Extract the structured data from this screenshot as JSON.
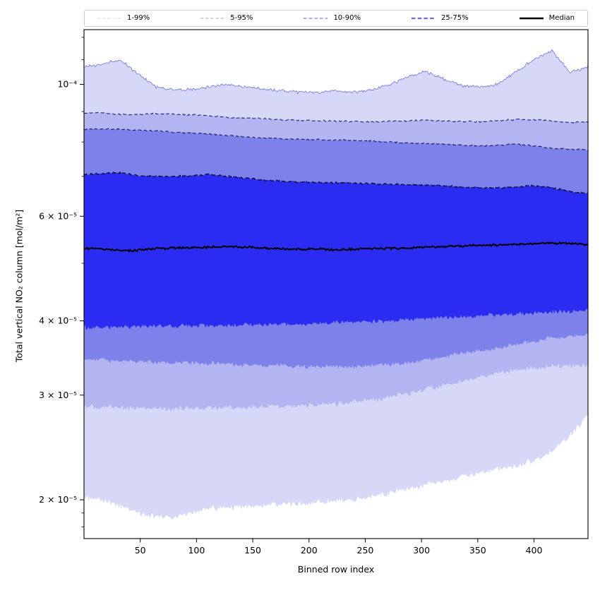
{
  "figure": {
    "background": "#ffffff"
  },
  "legend": {
    "entries": [
      {
        "label": "1-99%",
        "color": "rgba(60,60,230,0.22)",
        "width": 1.0,
        "dash": "4,3.2"
      },
      {
        "label": "5-95%",
        "color": "rgba(60,60,230,0.38)",
        "width": 1.2,
        "dash": "4,3.2"
      },
      {
        "label": "10-90%",
        "color": "rgba(55,55,235,0.55)",
        "width": 1.6,
        "dash": "4.5,3.2"
      },
      {
        "label": "25-75%",
        "color": "rgba(55,55,240,0.75)",
        "width": 2.3,
        "dash": "5.5,3.2"
      },
      {
        "label": "Median",
        "color": "#000000",
        "width": 2.6,
        "dash": null
      }
    ]
  },
  "chart_data": {
    "type": "area",
    "title": "",
    "xlabel": "Binned row index",
    "ylabel": "Total vertical NO₂ column [mol/m²]",
    "grid": false,
    "legend_position": "top",
    "x_axis": {
      "range": [
        0,
        448
      ],
      "ticks": [
        {
          "value": 50,
          "label": "50"
        },
        {
          "value": 100,
          "label": "100"
        },
        {
          "value": 150,
          "label": "150"
        },
        {
          "value": 200,
          "label": "200"
        },
        {
          "value": 250,
          "label": "250"
        },
        {
          "value": 300,
          "label": "300"
        },
        {
          "value": 350,
          "label": "350"
        },
        {
          "value": 400,
          "label": "400"
        }
      ]
    },
    "y_axis": {
      "scale": "log",
      "range": [
        1.72e-05,
        0.0001235
      ],
      "major_ticks": [
        {
          "value": 0.0001,
          "label": "10⁻⁴"
        },
        {
          "value": 6e-05,
          "label": "6 × 10⁻⁵"
        },
        {
          "value": 4e-05,
          "label": "4 × 10⁻⁵"
        },
        {
          "value": 3e-05,
          "label": "3 × 10⁻⁵"
        },
        {
          "value": 2e-05,
          "label": "2 × 10⁻⁵"
        }
      ],
      "minor_ticks": [
        0.00012,
        0.00011,
        9e-05,
        8e-05,
        7e-05,
        5e-05,
        1.9e-05,
        1.8e-05
      ]
    },
    "x_control": [
      0,
      16,
      32,
      48,
      64,
      80,
      96,
      112,
      128,
      144,
      160,
      176,
      192,
      208,
      224,
      240,
      256,
      272,
      288,
      304,
      320,
      336,
      352,
      368,
      384,
      400,
      416,
      432,
      448
    ],
    "series": {
      "p99": {
        "seed": 1,
        "noise": 0.007,
        "line": {
          "color": "#7b80e0",
          "width": 0.9,
          "dash": null
        },
        "values": [
          0.000107,
          0.000108,
          0.00011,
          0.000104,
          9.9e-05,
          9.8e-05,
          9.8e-05,
          9.9e-05,
          0.0001,
          9.9e-05,
          9.8e-05,
          9.75e-05,
          9.7e-05,
          9.7e-05,
          9.75e-05,
          9.7e-05,
          9.8e-05,
          0.0001,
          0.000103,
          0.000105,
          0.000102,
          9.95e-05,
          9.9e-05,
          0.0001,
          0.000105,
          0.00011,
          0.000114,
          0.0001046,
          0.000107
        ]
      },
      "p95": {
        "seed": 2,
        "noise": 0.0035,
        "line": {
          "color": "#23237f",
          "width": 1.1,
          "dash": "5,3.4"
        },
        "values": [
          8.95e-05,
          8.95e-05,
          8.9e-05,
          8.9e-05,
          8.92e-05,
          8.9e-05,
          8.88e-05,
          8.85e-05,
          8.8e-05,
          8.78e-05,
          8.75e-05,
          8.72e-05,
          8.7e-05,
          8.68e-05,
          8.67e-05,
          8.66e-05,
          8.65e-05,
          8.67e-05,
          8.68e-05,
          8.7e-05,
          8.68e-05,
          8.66e-05,
          8.65e-05,
          8.68e-05,
          8.73e-05,
          8.72e-05,
          8.68e-05,
          8.62e-05,
          8.65e-05
        ]
      },
      "p90": {
        "seed": 3,
        "noise": 0.0035,
        "line": {
          "color": "#1b1b68",
          "width": 1.1,
          "dash": "5,3.4"
        },
        "values": [
          8.4e-05,
          8.42e-05,
          8.4e-05,
          8.38e-05,
          8.35e-05,
          8.3e-05,
          8.28e-05,
          8.25e-05,
          8.2e-05,
          8.15e-05,
          8.12e-05,
          8.1e-05,
          8.08e-05,
          8.07e-05,
          8.05e-05,
          8.05e-05,
          8.03e-05,
          8e-05,
          7.97e-05,
          7.95e-05,
          7.93e-05,
          7.9e-05,
          7.88e-05,
          7.9e-05,
          7.93e-05,
          7.88e-05,
          7.8e-05,
          7.78e-05,
          7.75e-05
        ]
      },
      "p75": {
        "seed": 4,
        "noise": 0.004,
        "line": {
          "color": "#0c0c38",
          "width": 1.4,
          "dash": "6,3.4"
        },
        "values": [
          7.05e-05,
          7.08e-05,
          7.1e-05,
          7.02e-05,
          7e-05,
          7e-05,
          7.02e-05,
          7.05e-05,
          7e-05,
          6.95e-05,
          6.9e-05,
          6.87e-05,
          6.85e-05,
          6.84e-05,
          6.83e-05,
          6.82e-05,
          6.8e-05,
          6.79e-05,
          6.78e-05,
          6.77e-05,
          6.75e-05,
          6.72e-05,
          6.7e-05,
          6.7e-05,
          6.72e-05,
          6.75e-05,
          6.7e-05,
          6.6e-05,
          6.55e-05
        ]
      },
      "median": {
        "seed": 5,
        "noise": 0.005,
        "line": {
          "color": "#000000",
          "width": 2.0,
          "dash": null
        },
        "values": [
          5.3e-05,
          5.28e-05,
          5.25e-05,
          5.26e-05,
          5.3e-05,
          5.3e-05,
          5.31e-05,
          5.32e-05,
          5.34e-05,
          5.32e-05,
          5.3e-05,
          5.29e-05,
          5.28e-05,
          5.28e-05,
          5.27e-05,
          5.28e-05,
          5.29e-05,
          5.3e-05,
          5.3e-05,
          5.32e-05,
          5.34e-05,
          5.35e-05,
          5.36e-05,
          5.37e-05,
          5.38e-05,
          5.39e-05,
          5.41e-05,
          5.4e-05,
          5.38e-05
        ]
      },
      "p25": {
        "seed": 6,
        "noise": 0.011,
        "line": null,
        "values": [
          3.9e-05,
          3.9e-05,
          3.91e-05,
          3.91e-05,
          3.92e-05,
          3.92e-05,
          3.92e-05,
          3.93e-05,
          3.93e-05,
          3.94e-05,
          3.94e-05,
          3.95e-05,
          3.95e-05,
          3.96e-05,
          3.97e-05,
          3.98e-05,
          3.99e-05,
          4e-05,
          4.02e-05,
          4.04e-05,
          4.05e-05,
          4.07e-05,
          4.08e-05,
          4.1e-05,
          4.11e-05,
          4.12e-05,
          4.14e-05,
          4.15e-05,
          4.17e-05
        ]
      },
      "p10": {
        "seed": 7,
        "noise": 0.012,
        "line": null,
        "values": [
          3.45e-05,
          3.44e-05,
          3.43e-05,
          3.42e-05,
          3.41e-05,
          3.4e-05,
          3.4e-05,
          3.39e-05,
          3.38e-05,
          3.37e-05,
          3.36e-05,
          3.36e-05,
          3.35e-05,
          3.35e-05,
          3.35e-05,
          3.35e-05,
          3.36e-05,
          3.38e-05,
          3.4e-05,
          3.44e-05,
          3.48e-05,
          3.52e-05,
          3.56e-05,
          3.6e-05,
          3.65e-05,
          3.7e-05,
          3.74e-05,
          3.77e-05,
          3.8e-05
        ]
      },
      "p5": {
        "seed": 8,
        "noise": 0.014,
        "line": null,
        "values": [
          2.87e-05,
          2.86e-05,
          2.86e-05,
          2.85e-05,
          2.85e-05,
          2.85e-05,
          2.85e-05,
          2.85e-05,
          2.86e-05,
          2.86e-05,
          2.87e-05,
          2.87e-05,
          2.88e-05,
          2.89e-05,
          2.9e-05,
          2.92e-05,
          2.95e-05,
          2.98e-05,
          3.02e-05,
          3.07e-05,
          3.12e-05,
          3.17e-05,
          3.22e-05,
          3.26e-05,
          3.3e-05,
          3.33e-05,
          3.35e-05,
          3.36e-05,
          3.38e-05
        ]
      },
      "p1": {
        "seed": 9,
        "noise": 0.015,
        "line": null,
        "values": [
          2.02e-05,
          2e-05,
          1.95e-05,
          1.9e-05,
          1.87e-05,
          1.87e-05,
          1.9e-05,
          1.93e-05,
          1.94e-05,
          1.95e-05,
          1.96e-05,
          1.97e-05,
          1.97e-05,
          1.98e-05,
          1.99e-05,
          2e-05,
          2.02e-05,
          2.05e-05,
          2.08e-05,
          2.12e-05,
          2.15e-05,
          2.18e-05,
          2.22e-05,
          2.25e-05,
          2.28e-05,
          2.32e-05,
          2.42e-05,
          2.56e-05,
          2.78e-05
        ]
      }
    },
    "bands": [
      {
        "name": "band-1-99",
        "upper": "p99",
        "lower": "p1",
        "fill": "#d7d8f7"
      },
      {
        "name": "band-5-95",
        "upper": "p95",
        "lower": "p5",
        "fill": "#b3b5f2"
      },
      {
        "name": "band-10-90",
        "upper": "p90",
        "lower": "p10",
        "fill": "#7d82ea"
      },
      {
        "name": "band-25-75",
        "upper": "p75",
        "lower": "p25",
        "fill": "#2b2cf2"
      }
    ]
  }
}
